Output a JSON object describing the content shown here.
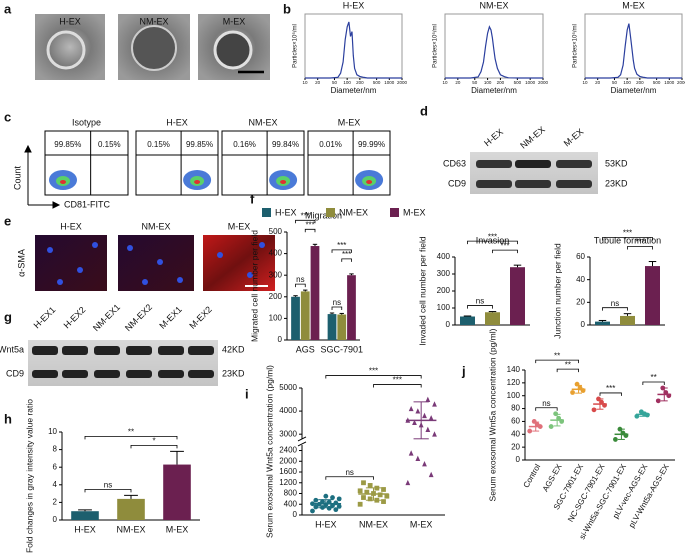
{
  "panel_labels": [
    "a",
    "b",
    "c",
    "d",
    "e",
    "f",
    "g",
    "h",
    "i",
    "j"
  ],
  "a": {
    "labels": [
      "H-EX",
      "NM-EX",
      "M-EX"
    ]
  },
  "c": {
    "titles": [
      "Isotype",
      "H-EX",
      "NM-EX",
      "M-EX"
    ],
    "percentages": [
      [
        "99.85%",
        "0.15%"
      ],
      [
        "0.15%",
        "99.85%"
      ],
      [
        "0.16%",
        "99.84%"
      ],
      [
        "0.01%",
        "99.99%"
      ]
    ],
    "ylabel": "Count",
    "xlabel": "CD81-FITC"
  },
  "d": {
    "lanes": [
      "H-EX",
      "NM-EX",
      "M-EX"
    ],
    "rows": [
      "CD63",
      "CD9"
    ],
    "sizes": [
      "53KD",
      "23KD"
    ]
  },
  "e": {
    "labels": [
      "H-EX",
      "NM-EX",
      "M-EX"
    ],
    "stain": "α-SMA"
  },
  "g": {
    "lanes": [
      "H-EX1",
      "H-EX2",
      "NM-EX1",
      "NM-EX2",
      "M-EX1",
      "M-EX2"
    ],
    "rows": [
      "Wnt5a",
      "CD9"
    ],
    "sizes": [
      "42KD",
      "23KD"
    ]
  },
  "chart_data": [
    {
      "type": "line",
      "title": "H-EX",
      "xlabel": "Diameter/nm",
      "ylabel": "Particles×10⁶/ml",
      "log_x": true,
      "color": "#2b3f9e",
      "x": [
        10,
        40,
        60,
        70,
        80,
        90,
        100,
        110,
        120,
        130,
        140,
        150,
        170,
        200,
        250,
        300,
        500,
        1000,
        2000
      ],
      "values": [
        0,
        0,
        0.02,
        0.15,
        0.5,
        1.2,
        1.6,
        1.75,
        1.3,
        1.45,
        0.7,
        0.3,
        0.1,
        0.05,
        0.02,
        0,
        0,
        0,
        0
      ],
      "xlim": [
        10,
        2000
      ],
      "xticks": [
        10,
        20,
        50,
        100,
        200,
        500,
        1000,
        2000
      ],
      "ylim": [
        0,
        2
      ]
    },
    {
      "type": "line",
      "title": "NM-EX",
      "xlabel": "Diameter/nm",
      "ylabel": "Particles×10⁶/ml",
      "log_x": true,
      "color": "#2b3f9e",
      "x": [
        10,
        40,
        60,
        70,
        80,
        90,
        100,
        110,
        120,
        130,
        140,
        150,
        170,
        200,
        250,
        300,
        500,
        1000,
        2000
      ],
      "values": [
        0,
        0,
        0.03,
        0.2,
        0.5,
        1.0,
        1.4,
        1.6,
        1.5,
        1.25,
        0.9,
        0.6,
        0.3,
        0.1,
        0.04,
        0.01,
        0,
        0,
        0
      ],
      "xlim": [
        10,
        2000
      ],
      "xticks": [
        10,
        20,
        50,
        100,
        200,
        500,
        1000,
        2000
      ],
      "ylim": [
        0,
        2
      ]
    },
    {
      "type": "line",
      "title": "M-EX",
      "xlabel": "Diameter/nm",
      "ylabel": "Particles×10⁶/ml",
      "log_x": true,
      "color": "#2b3f9e",
      "x": [
        10,
        40,
        60,
        70,
        80,
        90,
        100,
        110,
        120,
        130,
        140,
        150,
        170,
        200,
        250,
        300,
        500,
        1000,
        2000
      ],
      "values": [
        0,
        0,
        0.02,
        0.1,
        0.4,
        1.0,
        1.5,
        1.7,
        1.3,
        0.9,
        0.55,
        0.3,
        0.12,
        0.05,
        0.02,
        0,
        0,
        0,
        0
      ],
      "xlim": [
        10,
        2000
      ],
      "xticks": [
        10,
        20,
        50,
        100,
        200,
        500,
        1000,
        2000
      ],
      "ylim": [
        0,
        2
      ]
    },
    {
      "type": "bar",
      "title": "Migration",
      "ylabel": "Migrated cell number per field",
      "categories": [
        "AGS",
        "SGC-7901"
      ],
      "series": [
        {
          "name": "H-EX",
          "color": "#1d5f6e",
          "values": [
            200,
            120
          ],
          "errors": [
            5,
            5
          ]
        },
        {
          "name": "NM-EX",
          "color": "#8f8c3c",
          "values": [
            225,
            118
          ],
          "errors": [
            6,
            5
          ]
        },
        {
          "name": "M-EX",
          "color": "#6b2050",
          "values": [
            435,
            300
          ],
          "errors": [
            8,
            6
          ]
        }
      ],
      "ylim": [
        0,
        500
      ],
      "yticks": [
        0,
        100,
        200,
        300,
        400,
        500
      ],
      "annotations": [
        "ns",
        "***",
        "***",
        "ns",
        "***",
        "***"
      ]
    },
    {
      "type": "bar",
      "title": "Invasion",
      "ylabel": "Invaded cell number per field",
      "categories": [
        null,
        null,
        null
      ],
      "values": [
        50,
        75,
        340
      ],
      "errors": [
        3,
        4,
        12
      ],
      "colors": [
        "#1d5f6e",
        "#8f8c3c",
        "#6b2050"
      ],
      "ylim": [
        0,
        400
      ],
      "yticks": [
        0,
        100,
        200,
        300,
        400
      ],
      "annotations": [
        "ns",
        "***",
        "***"
      ]
    },
    {
      "type": "bar",
      "title": "Tubule formation",
      "ylabel": "Junction number per field",
      "categories": [
        null,
        null,
        null
      ],
      "values": [
        3,
        8,
        52
      ],
      "errors": [
        1,
        2,
        4
      ],
      "colors": [
        "#1d5f6e",
        "#8f8c3c",
        "#6b2050"
      ],
      "ylim": [
        0,
        60
      ],
      "yticks": [
        0,
        20,
        40,
        60
      ],
      "annotations": [
        "ns",
        "***",
        "***"
      ]
    },
    {
      "type": "bar",
      "ylabel": "Fold changes in gray intensity value ratio",
      "categories": [
        "H-EX",
        "NM-EX",
        "M-EX"
      ],
      "values": [
        1.0,
        2.4,
        6.3
      ],
      "errors": [
        0.15,
        0.4,
        1.5
      ],
      "colors": [
        "#1d5f6e",
        "#8f8c3c",
        "#6b2050"
      ],
      "ylim": [
        0,
        10
      ],
      "yticks": [
        0,
        2,
        4,
        6,
        8,
        10
      ],
      "annotations": [
        "ns",
        "*",
        "**"
      ]
    },
    {
      "type": "strip",
      "ylabel": "Serum exosomal Wnt5a concentration (pg/ml)",
      "categories": [
        "H-EX",
        "NM-EX",
        "M-EX"
      ],
      "colors": [
        "#1d6f80",
        "#9c9a45",
        "#7a3a78"
      ],
      "markers": [
        "circle",
        "square",
        "triangle"
      ],
      "points": [
        [
          150,
          200,
          250,
          280,
          300,
          320,
          350,
          380,
          400,
          420,
          450,
          480,
          500,
          550,
          600,
          650,
          700
        ],
        [
          400,
          500,
          550,
          600,
          650,
          700,
          750,
          800,
          850,
          900,
          950,
          1000,
          1100,
          1200
        ],
        [
          1200,
          1500,
          1900,
          2100,
          2300,
          3000,
          3200,
          3400,
          3500,
          3600,
          3700,
          3800,
          4000,
          4100,
          4300,
          4500
        ]
      ],
      "means": [
        420,
        780,
        3600
      ],
      "sds": [
        150,
        230,
        800
      ],
      "ylim": [
        0,
        5000
      ],
      "ybreak": [
        2600,
        2800
      ],
      "yticks": [
        0,
        400,
        800,
        1200,
        1600,
        2000,
        2400,
        3000,
        4000,
        5000
      ],
      "annotations": [
        "ns",
        "***",
        "***"
      ]
    },
    {
      "type": "strip",
      "ylabel": "Serum exosomal Wnt5a concentration (pg/ml)",
      "categories": [
        "Control",
        "AGS-EX",
        "SGC-7901-EX",
        "NC-SGC-7901-EX",
        "si-Wnt5a-SGC-7901-EX",
        "pLV-vec-AGS-EX",
        "pLV-Wnt5a-AGS-EX"
      ],
      "colors": [
        "#e0707a",
        "#7cc47c",
        "#e8a030",
        "#d84a4a",
        "#3a8a3a",
        "#35a59a",
        "#a03060"
      ],
      "markers": [
        "circle",
        "circle",
        "circle",
        "circle",
        "circle",
        "circle",
        "circle"
      ],
      "points": [
        [
          45,
          52,
          55,
          60
        ],
        [
          52,
          60,
          65,
          72
        ],
        [
          105,
          108,
          112,
          118
        ],
        [
          78,
          85,
          90,
          95
        ],
        [
          32,
          38,
          42,
          48
        ],
        [
          68,
          70,
          72,
          75
        ],
        [
          92,
          100,
          105,
          112
        ]
      ],
      "means": [
        52,
        62,
        110,
        87,
        40,
        71,
        102
      ],
      "sds": [
        7,
        9,
        6,
        8,
        8,
        3,
        10
      ],
      "ylim": [
        0,
        140
      ],
      "yticks": [
        0,
        20,
        40,
        60,
        80,
        100,
        120,
        140
      ],
      "annotations": [
        "ns",
        "**",
        "**",
        "***",
        "**"
      ]
    }
  ]
}
